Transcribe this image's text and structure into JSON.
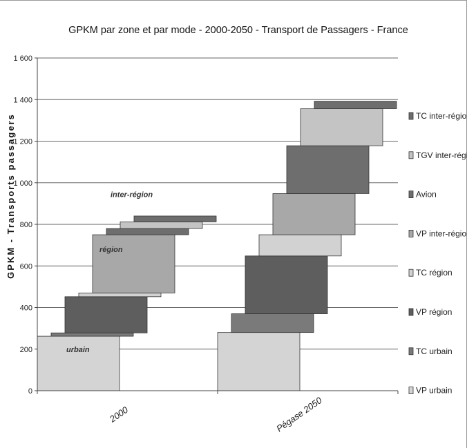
{
  "chart_data": {
    "type": "bar",
    "title": "GPKM  par  zone  et  par  mode  -  2000-2050  -  Transport de Passagers - France",
    "ylabel": "GPKM   -   Transports   passagers",
    "xlabel": "",
    "ylim": [
      0,
      1600
    ],
    "yticks": [
      0,
      200,
      400,
      600,
      800,
      1000,
      1200,
      1400,
      1600
    ],
    "ytick_labels": [
      "0",
      "200",
      "400",
      "600",
      "800",
      "1 000",
      "1 200",
      "1 400",
      "1 600"
    ],
    "categories": [
      "2000",
      "Pégase 2050"
    ],
    "grid": true,
    "legend_position": "right",
    "series": [
      {
        "name": "VP urbain",
        "color": "#d4d4d4",
        "values": [
          [
            0,
            262
          ],
          [
            0,
            280
          ]
        ]
      },
      {
        "name": "TC urbain",
        "color": "#7a7a7a",
        "values": [
          [
            262,
            278
          ],
          [
            280,
            370
          ]
        ]
      },
      {
        "name": "VP région",
        "color": "#5e5e5e",
        "values": [
          [
            278,
            452
          ],
          [
            370,
            648
          ]
        ]
      },
      {
        "name": "TC région",
        "color": "#d2d2d2",
        "values": [
          [
            452,
            470
          ],
          [
            648,
            750
          ]
        ]
      },
      {
        "name": "VP inter-région",
        "color": "#a8a8a8",
        "values": [
          [
            470,
            750
          ],
          [
            750,
            948
          ]
        ]
      },
      {
        "name": "Avion",
        "color": "#6e6e6e",
        "values": [
          [
            750,
            780
          ],
          [
            948,
            1178
          ]
        ]
      },
      {
        "name": "TGV inter-région",
        "color": "#c4c4c4",
        "values": [
          [
            780,
            812
          ],
          [
            1178,
            1356
          ]
        ]
      },
      {
        "name": "TC inter-région",
        "color": "#6e6e6e",
        "values": [
          [
            812,
            840
          ],
          [
            1356,
            1392
          ]
        ]
      }
    ],
    "legend_order": [
      "TC inter-région",
      "TGV inter-région",
      "Avion",
      "VP inter-région",
      "TC région",
      "VP région",
      "TC urbain",
      "VP urbain"
    ],
    "annotations": [
      {
        "text": "urbain",
        "category": "2000",
        "y": 200
      },
      {
        "text": "région",
        "category": "2000",
        "y": 680
      },
      {
        "text": "inter-région",
        "category": "2000",
        "y": 945
      }
    ]
  }
}
